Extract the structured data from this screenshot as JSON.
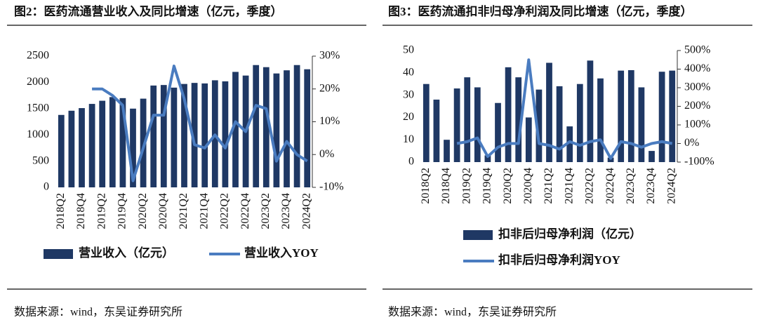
{
  "chart_data": [
    {
      "type": "bar-line",
      "title": "图2：医药流通营业收入及同比增速（亿元，季度）",
      "categories": [
        "2018Q2",
        null,
        "2018Q4",
        null,
        "2019Q2",
        null,
        "2019Q4",
        null,
        "2020Q2",
        null,
        "2020Q4",
        null,
        "2021Q2",
        null,
        "2021Q4",
        null,
        "2022Q2",
        null,
        "2022Q4",
        null,
        "2023Q2",
        null,
        "2023Q4",
        null,
        "2024Q2"
      ],
      "series": [
        {
          "name": "营业收入（亿元）",
          "color": "#1f3864",
          "axis": "y",
          "values": [
            1380,
            1460,
            1510,
            1590,
            1650,
            1720,
            1700,
            1500,
            1690,
            1940,
            1950,
            1900,
            1970,
            1990,
            1980,
            2040,
            2020,
            2200,
            2130,
            2330,
            2290,
            2170,
            2230,
            2330,
            2250
          ]
        },
        {
          "name": "营业收入YOY",
          "color": "#4a7cc0",
          "axis": "y2",
          "values": [
            null,
            null,
            null,
            20,
            20,
            18,
            15,
            -8,
            2,
            12,
            12,
            27,
            17,
            3,
            2,
            6,
            2,
            10,
            7,
            15,
            14,
            -2,
            4,
            0,
            -2
          ]
        }
      ],
      "ylim": [
        0,
        2500
      ],
      "yticks": [
        0,
        500,
        1000,
        1500,
        2000,
        2500
      ],
      "y2lim": [
        -10,
        30
      ],
      "y2ticks": [
        {
          "value": -10,
          "label": "-10%"
        },
        {
          "value": 0,
          "label": "0%"
        },
        {
          "value": 10,
          "label": "10%"
        },
        {
          "value": 20,
          "label": "20%"
        },
        {
          "value": 30,
          "label": "30%"
        }
      ],
      "legend": "bottom",
      "source": "数据来源：wind，东吴证券研究所"
    },
    {
      "type": "bar-line",
      "title": "图3：医药流通扣非归母净利润及同比增速（亿元，季度）",
      "categories": [
        "2018Q2",
        null,
        "2018Q4",
        null,
        "2019Q2",
        null,
        "2019Q4",
        null,
        "2020Q2",
        null,
        "2020Q4",
        null,
        "2021Q2",
        null,
        "2021Q4",
        null,
        "2022Q2",
        null,
        "2022Q4",
        null,
        "2023Q2",
        null,
        "2023Q4",
        null,
        "2024Q2"
      ],
      "series": [
        {
          "name": "扣非后归母净利润（亿元）",
          "color": "#1f3864",
          "axis": "y",
          "values": [
            35,
            28,
            10,
            33,
            38,
            33.5,
            3,
            26.5,
            42.5,
            38,
            20,
            32.5,
            44.5,
            34,
            16,
            35,
            45.5,
            37.5,
            2,
            41,
            41.2,
            33.5,
            5,
            40.5,
            41
          ]
        },
        {
          "name": "扣非后归母净利润YOY",
          "color": "#4a7cc0",
          "axis": "y2",
          "values": [
            null,
            null,
            null,
            0,
            10,
            30,
            -70,
            -20,
            0,
            0,
            450,
            0,
            -10,
            -30,
            10,
            -10,
            10,
            20,
            -80,
            10,
            0,
            -20,
            0,
            10,
            0
          ]
        }
      ],
      "ylim": [
        0,
        50
      ],
      "yticks": [
        0,
        10,
        20,
        30,
        40,
        50
      ],
      "y2lim": [
        -100,
        500
      ],
      "y2ticks": [
        {
          "value": -100,
          "label": "-100%"
        },
        {
          "value": 0,
          "label": "0%"
        },
        {
          "value": 100,
          "label": "100%"
        },
        {
          "value": 200,
          "label": "200%"
        },
        {
          "value": 300,
          "label": "300%"
        },
        {
          "value": 400,
          "label": "400%"
        },
        {
          "value": 500,
          "label": "500%"
        }
      ],
      "legend": "bottom",
      "source": "数据来源：wind，东吴证券研究所"
    }
  ]
}
